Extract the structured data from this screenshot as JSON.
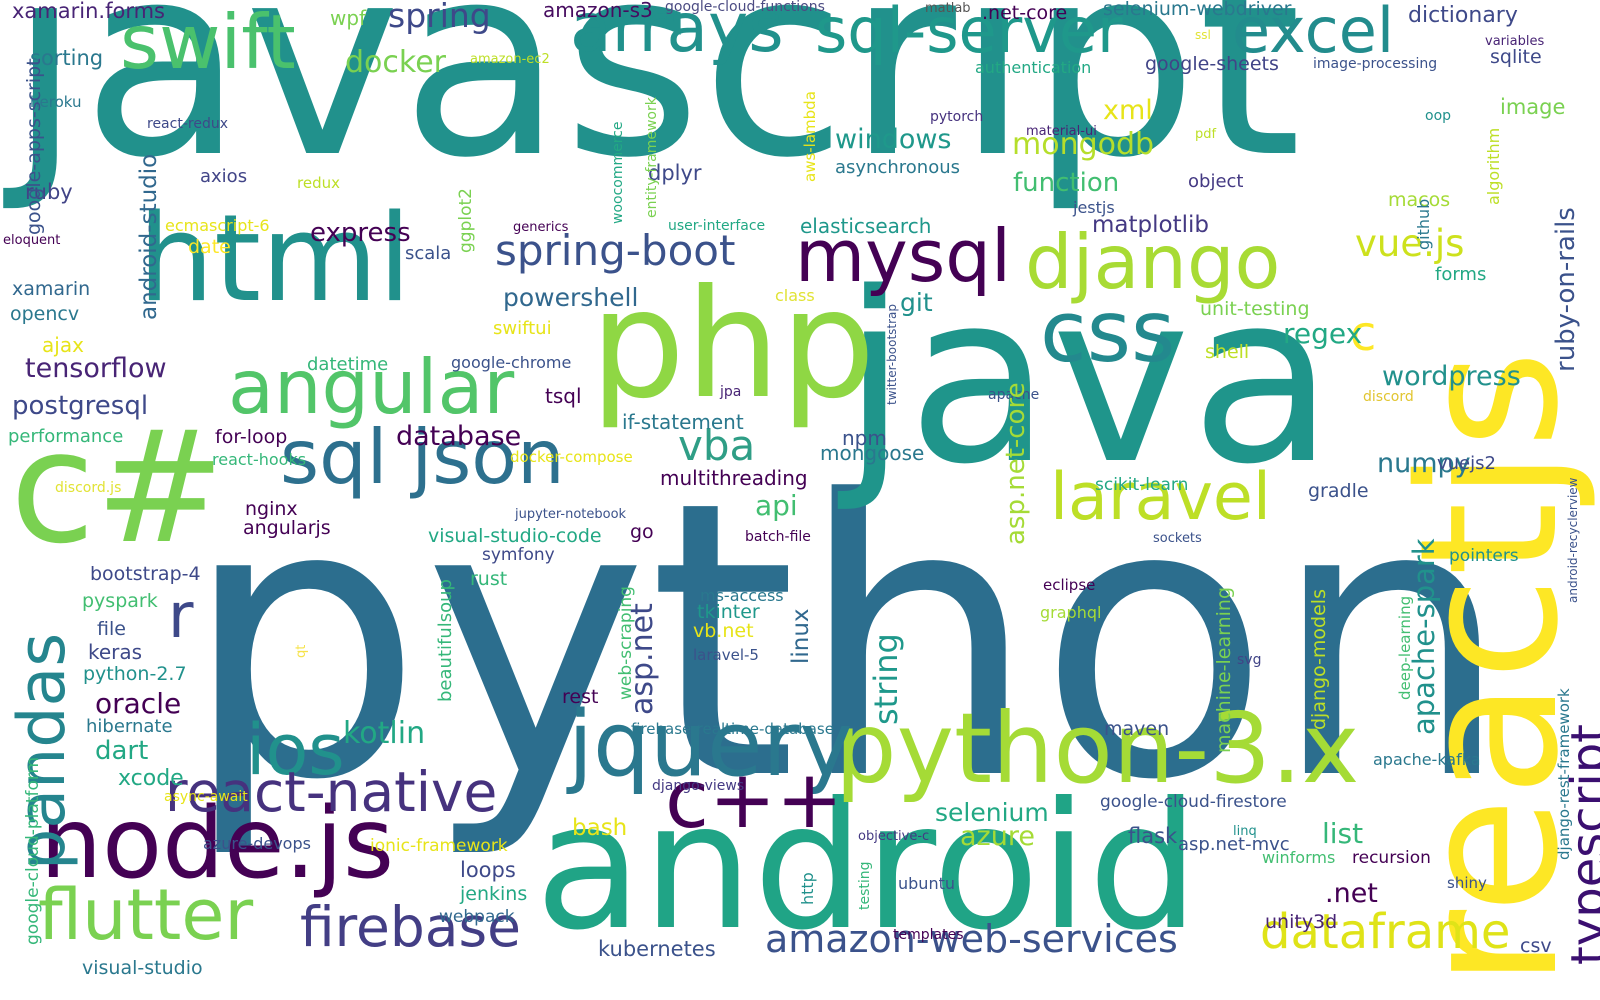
{
  "palette": {
    "background": "#ffffff",
    "colors": [
      "#440154",
      "#482475",
      "#414487",
      "#355f8d",
      "#2a788e",
      "#21908d",
      "#22a884",
      "#42be71",
      "#7ad151",
      "#bddf26",
      "#fde725"
    ]
  },
  "words": [
    {
      "text": "python",
      "color": "#2c6e8e"
    },
    {
      "text": "javascript",
      "color": "#21918c"
    },
    {
      "text": "java",
      "color": "#1f958b"
    },
    {
      "text": "reactjs",
      "color": "#fde725"
    },
    {
      "text": "android",
      "color": "#20a486"
    },
    {
      "text": "c#",
      "color": "#7ad151"
    },
    {
      "text": "php",
      "color": "#8fd744"
    },
    {
      "text": "html",
      "color": "#21918c"
    },
    {
      "text": "python-3.x",
      "color": "#a5db36"
    },
    {
      "text": "node.js",
      "color": "#440154"
    },
    {
      "text": "jquery",
      "color": "#2a788e"
    },
    {
      "text": "css",
      "color": "#23898e"
    },
    {
      "text": "sql json",
      "color": "#2d708e"
    },
    {
      "text": "mysql",
      "color": "#440154"
    },
    {
      "text": "arrays",
      "color": "#21918c"
    },
    {
      "text": "sql-server",
      "color": "#1f988b"
    },
    {
      "text": "excel",
      "color": "#228c8d"
    },
    {
      "text": "swift",
      "color": "#4ac16d"
    },
    {
      "text": "angular",
      "color": "#52c569"
    },
    {
      "text": "django",
      "color": "#a8db34"
    },
    {
      "text": "ios",
      "color": "#21918c"
    },
    {
      "text": "flutter",
      "color": "#7ad151"
    },
    {
      "text": "firebase",
      "color": "#433e85"
    },
    {
      "text": "react-native",
      "color": "#46327e"
    },
    {
      "text": "c++",
      "color": "#440154"
    },
    {
      "text": "typescript",
      "color": "#3b0f70"
    },
    {
      "text": "pandas",
      "color": "#25858e"
    },
    {
      "text": "laravel",
      "color": "#bddf26"
    },
    {
      "text": "amazon-web-services",
      "color": "#3b528b"
    },
    {
      "text": "spring-boot",
      "color": "#3b528b"
    },
    {
      "text": "r",
      "color": "#3e4989"
    },
    {
      "text": "vba",
      "color": "#2f9e86"
    },
    {
      "text": "dataframe",
      "color": "#dfe318"
    },
    {
      "text": "c",
      "color": "#fde725"
    },
    {
      "text": "vue.js",
      "color": "#cde11d"
    },
    {
      "text": "xamarin.forms",
      "color": "#482475"
    },
    {
      "text": "wpf",
      "color": "#7ad151"
    },
    {
      "text": "spring",
      "color": "#3e4989"
    },
    {
      "text": "amazon-s3",
      "color": "#470d60"
    },
    {
      "text": "google-cloud-functions",
      "color": "#4c4c83"
    },
    {
      "text": "matlab",
      "color": "#555555"
    },
    {
      "text": ".net-core",
      "color": "#440154"
    },
    {
      "text": "selenium-webdriver",
      "color": "#2a788e"
    },
    {
      "text": "dictionary",
      "color": "#3e4989"
    },
    {
      "text": "docker",
      "color": "#7ad151"
    },
    {
      "text": "sorting",
      "color": "#2a788e"
    },
    {
      "text": "amazon-ec2",
      "color": "#bddf26"
    },
    {
      "text": "ssl",
      "color": "#e1e335"
    },
    {
      "text": "variables",
      "color": "#482475"
    },
    {
      "text": "authentication",
      "color": "#22a884"
    },
    {
      "text": "google-sheets",
      "color": "#414487"
    },
    {
      "text": "image-processing",
      "color": "#3b528b"
    },
    {
      "text": "sqlite",
      "color": "#3e4989"
    },
    {
      "text": "heroku",
      "color": "#2a788e"
    },
    {
      "text": "image",
      "color": "#7ad151"
    },
    {
      "text": "react-redux",
      "color": "#3e4989"
    },
    {
      "text": "xml",
      "color": "#e7e419"
    },
    {
      "text": "mongodb",
      "color": "#b5de2b"
    },
    {
      "text": "pytorch",
      "color": "#46327e"
    },
    {
      "text": "material-ui",
      "color": "#482475"
    },
    {
      "text": "pdf",
      "color": "#bddf26"
    },
    {
      "text": "oop",
      "color": "#21918c"
    },
    {
      "text": "windows",
      "color": "#1f988b"
    },
    {
      "text": "ruby",
      "color": "#414487"
    },
    {
      "text": "axios",
      "color": "#414487"
    },
    {
      "text": "redux",
      "color": "#bddf26"
    },
    {
      "text": "asynchronous",
      "color": "#2a788e"
    },
    {
      "text": "function",
      "color": "#42be71"
    },
    {
      "text": "object",
      "color": "#443983"
    },
    {
      "text": "dplyr",
      "color": "#3e4989"
    },
    {
      "text": "jestjs",
      "color": "#3b528b"
    },
    {
      "text": "macos",
      "color": "#a5db36"
    },
    {
      "text": "ecmascript-6",
      "color": "#e7e419"
    },
    {
      "text": "generics",
      "color": "#440154"
    },
    {
      "text": "user-interface",
      "color": "#22a884"
    },
    {
      "text": "elasticsearch",
      "color": "#1f988b"
    },
    {
      "text": "eloquent",
      "color": "#440154"
    },
    {
      "text": "express",
      "color": "#440154"
    },
    {
      "text": "matplotlib",
      "color": "#443983"
    },
    {
      "text": "date",
      "color": "#fde725"
    },
    {
      "text": "scala",
      "color": "#3b528b"
    },
    {
      "text": "forms",
      "color": "#22a884"
    },
    {
      "text": "xamarin",
      "color": "#31688e"
    },
    {
      "text": "opencv",
      "color": "#2a788e"
    },
    {
      "text": "powershell",
      "color": "#31688e"
    },
    {
      "text": "class",
      "color": "#e1e335"
    },
    {
      "text": "git",
      "color": "#21918c"
    },
    {
      "text": "unit-testing",
      "color": "#7ad151"
    },
    {
      "text": "swiftui",
      "color": "#e7e419"
    },
    {
      "text": "regex",
      "color": "#22a884"
    },
    {
      "text": "ajax",
      "color": "#e7e419"
    },
    {
      "text": "datetime",
      "color": "#35b779"
    },
    {
      "text": "google-chrome",
      "color": "#3b528b"
    },
    {
      "text": "shell",
      "color": "#bddf26"
    },
    {
      "text": "tensorflow",
      "color": "#482475"
    },
    {
      "text": "wordpress",
      "color": "#21918c"
    },
    {
      "text": "postgresql",
      "color": "#3e4989"
    },
    {
      "text": "tsql",
      "color": "#440154"
    },
    {
      "text": "jpa",
      "color": "#482475"
    },
    {
      "text": "apache",
      "color": "#3b528b"
    },
    {
      "text": "discord",
      "color": "#e1c530"
    },
    {
      "text": "performance",
      "color": "#35b779"
    },
    {
      "text": "for-loop",
      "color": "#440154"
    },
    {
      "text": "if-statement",
      "color": "#2a788e"
    },
    {
      "text": "database",
      "color": "#440154"
    },
    {
      "text": "npm",
      "color": "#3b528b"
    },
    {
      "text": "react-hooks",
      "color": "#35b779"
    },
    {
      "text": "docker-compose",
      "color": "#e7e419"
    },
    {
      "text": "mongoose",
      "color": "#2a788e"
    },
    {
      "text": "numpy",
      "color": "#2a788e"
    },
    {
      "text": "vuejs2",
      "color": "#3e4989"
    },
    {
      "text": "discord.js",
      "color": "#e1e335"
    },
    {
      "text": "multithreading",
      "color": "#440154"
    },
    {
      "text": "nginx",
      "color": "#440154"
    },
    {
      "text": "jupyter-notebook",
      "color": "#3b528b"
    },
    {
      "text": "scikit-learn",
      "color": "#22a884"
    },
    {
      "text": "gradle",
      "color": "#3b528b"
    },
    {
      "text": "angularjs",
      "color": "#440154"
    },
    {
      "text": "api",
      "color": "#42be71"
    },
    {
      "text": "visual-studio-code",
      "color": "#22a884"
    },
    {
      "text": "go",
      "color": "#440154"
    },
    {
      "text": "batch-file",
      "color": "#440154"
    },
    {
      "text": "sockets",
      "color": "#3b528b"
    },
    {
      "text": "symfony",
      "color": "#3e4989"
    },
    {
      "text": "bootstrap-4",
      "color": "#3e4989"
    },
    {
      "text": "pointers",
      "color": "#21918c"
    },
    {
      "text": "rust",
      "color": "#35b779"
    },
    {
      "text": "pyspark",
      "color": "#42be71"
    },
    {
      "text": "eclipse",
      "color": "#440154"
    },
    {
      "text": "ms-access",
      "color": "#2a788e"
    },
    {
      "text": "file",
      "color": "#3b528b"
    },
    {
      "text": "graphql",
      "color": "#a5db36"
    },
    {
      "text": "tkinter",
      "color": "#1f988b"
    },
    {
      "text": "keras",
      "color": "#3e4989"
    },
    {
      "text": "vb.net",
      "color": "#e7e419"
    },
    {
      "text": "python-2.7",
      "color": "#21918c"
    },
    {
      "text": "laravel-5",
      "color": "#3b528b"
    },
    {
      "text": "svg",
      "color": "#414487"
    },
    {
      "text": "oracle",
      "color": "#440154"
    },
    {
      "text": "rest",
      "color": "#440154"
    },
    {
      "text": "hibernate",
      "color": "#2a788e"
    },
    {
      "text": "firebase-realtime-database",
      "color": "#2a788e"
    },
    {
      "text": "kotlin",
      "color": "#22a884"
    },
    {
      "text": "dart",
      "color": "#22a884"
    },
    {
      "text": "maven",
      "color": "#3b528b"
    },
    {
      "text": "apache-kafka",
      "color": "#2a788e"
    },
    {
      "text": "xcode",
      "color": "#22a884"
    },
    {
      "text": "async-await",
      "color": "#e7e419"
    },
    {
      "text": "django-views",
      "color": "#443983"
    },
    {
      "text": "google-cloud-firestore",
      "color": "#3b528b"
    },
    {
      "text": "selenium",
      "color": "#22a884"
    },
    {
      "text": "list",
      "color": "#35b779"
    },
    {
      "text": "bash",
      "color": "#e7e419"
    },
    {
      "text": "azure",
      "color": "#a5db36"
    },
    {
      "text": "ionic-framework",
      "color": "#e7e419"
    },
    {
      "text": "objective-c",
      "color": "#443983"
    },
    {
      "text": "linq",
      "color": "#21918c"
    },
    {
      "text": "flask",
      "color": "#3b528b"
    },
    {
      "text": "azure-devops",
      "color": "#3b528b"
    },
    {
      "text": "recursion",
      "color": "#440154"
    },
    {
      "text": "winforms",
      "color": "#42be71"
    },
    {
      "text": "asp.net-mvc",
      "color": "#3b528b"
    },
    {
      "text": "loops",
      "color": "#3e4989"
    },
    {
      "text": "ubuntu",
      "color": "#3b528b"
    },
    {
      "text": "shiny",
      "color": "#3b528b"
    },
    {
      "text": "jenkins",
      "color": "#22a884"
    },
    {
      "text": "webpack",
      "color": "#31688e"
    },
    {
      "text": ".net",
      "color": "#440154"
    },
    {
      "text": "templates",
      "color": "#440154"
    },
    {
      "text": "unity3d",
      "color": "#482475"
    },
    {
      "text": "kubernetes",
      "color": "#3b528b"
    },
    {
      "text": "csv",
      "color": "#3e4989"
    },
    {
      "text": "visual-studio",
      "color": "#2a788e"
    },
    {
      "text": "google-apps-script",
      "color": "#3b528b"
    },
    {
      "text": "android-studio",
      "color": "#31688e"
    },
    {
      "text": "google-cloud-platform",
      "color": "#35b779"
    },
    {
      "text": "ggplot2",
      "color": "#7ad151"
    },
    {
      "text": "woocommerce",
      "color": "#22a884"
    },
    {
      "text": "entity-framework",
      "color": "#7ad151"
    },
    {
      "text": "aws-lambda",
      "color": "#e7e419"
    },
    {
      "text": "algorithm",
      "color": "#bddf26"
    },
    {
      "text": "github",
      "color": "#2a788e"
    },
    {
      "text": "ruby-on-rails",
      "color": "#3b528b"
    },
    {
      "text": "asp.net-core",
      "color": "#a5db36"
    },
    {
      "text": "twitter-bootstrap",
      "color": "#3b528b"
    },
    {
      "text": "apache-spark",
      "color": "#21918c"
    },
    {
      "text": "string",
      "color": "#1f988b"
    },
    {
      "text": "linux",
      "color": "#31688e"
    },
    {
      "text": "asp.net",
      "color": "#3e4989"
    },
    {
      "text": "beautifulsoup",
      "color": "#35b779"
    },
    {
      "text": "web-scraping",
      "color": "#42be71"
    },
    {
      "text": "django-models",
      "color": "#bddf26"
    },
    {
      "text": "machine-learning",
      "color": "#7ad151"
    },
    {
      "text": "deep-learning",
      "color": "#42be71"
    },
    {
      "text": "qt",
      "color": "#f6e34a"
    },
    {
      "text": "http",
      "color": "#21918c"
    },
    {
      "text": "testing",
      "color": "#35b779"
    },
    {
      "text": "android-recyclerview",
      "color": "#3b528b"
    },
    {
      "text": "django-rest-framework",
      "color": "#2a788e"
    }
  ]
}
